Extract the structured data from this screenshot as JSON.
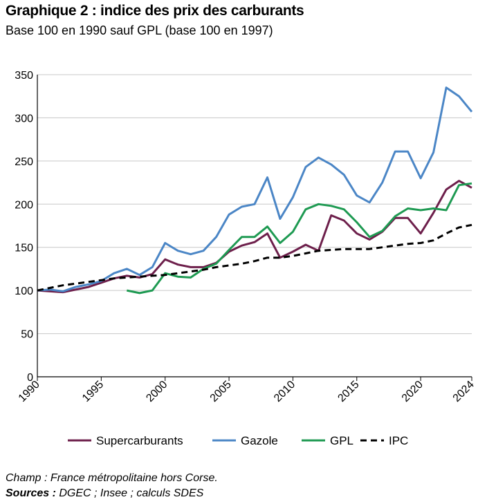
{
  "title": "Graphique 2 : indice des prix des carburants",
  "subtitle": "Base 100 en 1990 sauf GPL (base 100 en 1997)",
  "notes": {
    "field": "Champ : France métropolitaine hors Corse.",
    "source_label": "Sources :",
    "source_text": " DGEC ; Insee ; calculs SDES"
  },
  "chart_data": {
    "type": "line",
    "title": "Graphique 2 : indice des prix des carburants",
    "subtitle": "Base 100 en 1990 sauf GPL (base 100 en 1997)",
    "xlabel": "",
    "ylabel": "",
    "xlim": [
      1990,
      2024
    ],
    "ylim": [
      0,
      350
    ],
    "x_ticks": [
      1990,
      1995,
      2000,
      2005,
      2010,
      2015,
      2020,
      2024
    ],
    "y_ticks": [
      0,
      50,
      100,
      150,
      200,
      250,
      300,
      350
    ],
    "grid": "horizontal",
    "legend_position": "bottom",
    "series": [
      {
        "name": "Supercarburants",
        "color": "#6d1f4b",
        "style": "solid",
        "x": [
          1990,
          1991,
          1992,
          1993,
          1994,
          1995,
          1996,
          1997,
          1998,
          1999,
          2000,
          2001,
          2002,
          2003,
          2004,
          2005,
          2006,
          2007,
          2008,
          2009,
          2010,
          2011,
          2012,
          2013,
          2014,
          2015,
          2016,
          2017,
          2018,
          2019,
          2020,
          2021,
          2022,
          2023,
          2024
        ],
        "values": [
          100,
          99,
          98,
          101,
          104,
          109,
          114,
          117,
          115,
          119,
          136,
          130,
          127,
          127,
          132,
          145,
          152,
          156,
          166,
          138,
          145,
          153,
          146,
          187,
          181,
          166,
          159,
          168,
          184,
          184,
          166,
          190,
          217,
          227,
          219
        ]
      },
      {
        "name": "Gazole",
        "color": "#4b86c6",
        "style": "solid",
        "x": [
          1990,
          1991,
          1992,
          1993,
          1994,
          1995,
          1996,
          1997,
          1998,
          1999,
          2000,
          2001,
          2002,
          2003,
          2004,
          2005,
          2006,
          2007,
          2008,
          2009,
          2010,
          2011,
          2012,
          2013,
          2014,
          2015,
          2016,
          2017,
          2018,
          2019,
          2020,
          2021,
          2022,
          2023,
          2024
        ],
        "values": [
          100,
          101,
          99,
          104,
          107,
          111,
          120,
          125,
          118,
          127,
          155,
          146,
          142,
          146,
          162,
          188,
          197,
          200,
          231,
          183,
          208,
          243,
          254,
          246,
          234,
          210,
          202,
          225,
          261,
          261,
          230,
          260,
          335,
          325,
          307
        ]
      },
      {
        "name": "GPL",
        "color": "#1e9a52",
        "style": "solid",
        "x": [
          1997,
          1998,
          1999,
          2000,
          2001,
          2002,
          2003,
          2004,
          2005,
          2006,
          2007,
          2008,
          2009,
          2010,
          2011,
          2012,
          2013,
          2014,
          2015,
          2016,
          2017,
          2018,
          2019,
          2020,
          2021,
          2022,
          2023,
          2024
        ],
        "values": [
          100,
          97,
          100,
          120,
          116,
          115,
          125,
          131,
          147,
          162,
          162,
          174,
          155,
          168,
          194,
          200,
          198,
          194,
          179,
          162,
          169,
          186,
          195,
          193,
          195,
          193,
          222,
          224
        ]
      },
      {
        "name": "IPC",
        "color": "#000000",
        "style": "dashed",
        "x": [
          1990,
          1991,
          1992,
          1993,
          1994,
          1995,
          1996,
          1997,
          1998,
          1999,
          2000,
          2001,
          2002,
          2003,
          2004,
          2005,
          2006,
          2007,
          2008,
          2009,
          2010,
          2011,
          2012,
          2013,
          2014,
          2015,
          2016,
          2017,
          2018,
          2019,
          2020,
          2021,
          2022,
          2023,
          2024
        ],
        "values": [
          100,
          103,
          106,
          108,
          110,
          112,
          114,
          115,
          116,
          117,
          118,
          120,
          122,
          124,
          127,
          129,
          131,
          134,
          138,
          138,
          140,
          143,
          146,
          147,
          148,
          148,
          148,
          150,
          152,
          154,
          155,
          158,
          166,
          173,
          176
        ]
      }
    ]
  }
}
